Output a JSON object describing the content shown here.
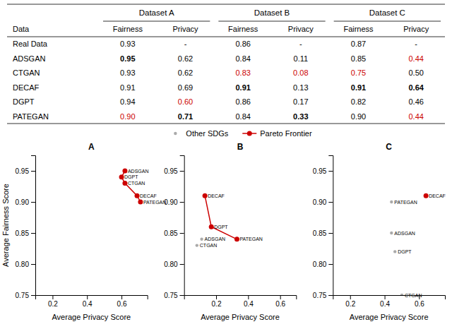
{
  "chart_data": [
    {
      "type": "table",
      "row_header": "Data",
      "categories": [
        "Real Data",
        "ADSGAN",
        "CTGAN",
        "DECAF",
        "DGPT",
        "PATEGAN"
      ],
      "groups": [
        {
          "name": "Dataset A",
          "series": [
            {
              "name": "Fairness",
              "values": [
                0.93,
                0.95,
                0.93,
                0.91,
                0.94,
                0.9
              ],
              "value_labels": [
                "0.93",
                "0.95",
                "0.93",
                "0.91",
                "0.94",
                "0.90"
              ],
              "colors": [
                "#000000",
                "#000000",
                "#000000",
                "#000000",
                "#000000",
                "#cc0000"
              ],
              "bold": [
                false,
                true,
                false,
                false,
                false,
                false
              ]
            },
            {
              "name": "Privacy",
              "values": [
                null,
                0.62,
                0.62,
                0.69,
                0.6,
                0.71
              ],
              "value_labels": [
                "-",
                "0.62",
                "0.62",
                "0.69",
                "0.60",
                "0.71"
              ],
              "colors": [
                "#000000",
                "#000000",
                "#000000",
                "#000000",
                "#cc0000",
                "#000000"
              ],
              "bold": [
                false,
                false,
                false,
                false,
                false,
                true
              ]
            }
          ]
        },
        {
          "name": "Dataset B",
          "series": [
            {
              "name": "Fairness",
              "values": [
                0.86,
                0.84,
                0.83,
                0.91,
                0.86,
                0.84
              ],
              "value_labels": [
                "0.86",
                "0.84",
                "0.83",
                "0.91",
                "0.86",
                "0.84"
              ],
              "colors": [
                "#000000",
                "#000000",
                "#cc0000",
                "#000000",
                "#000000",
                "#000000"
              ],
              "bold": [
                false,
                false,
                false,
                true,
                false,
                false
              ]
            },
            {
              "name": "Privacy",
              "values": [
                null,
                0.11,
                0.08,
                0.13,
                0.17,
                0.33
              ],
              "value_labels": [
                "-",
                "0.11",
                "0.08",
                "0.13",
                "0.17",
                "0.33"
              ],
              "colors": [
                "#000000",
                "#000000",
                "#cc0000",
                "#000000",
                "#000000",
                "#000000"
              ],
              "bold": [
                false,
                false,
                false,
                false,
                false,
                true
              ]
            }
          ]
        },
        {
          "name": "Dataset C",
          "series": [
            {
              "name": "Fairness",
              "values": [
                0.87,
                0.85,
                0.75,
                0.91,
                0.82,
                0.9
              ],
              "value_labels": [
                "0.87",
                "0.85",
                "0.75",
                "0.91",
                "0.82",
                "0.90"
              ],
              "colors": [
                "#000000",
                "#000000",
                "#cc0000",
                "#000000",
                "#000000",
                "#000000"
              ],
              "bold": [
                false,
                false,
                false,
                true,
                false,
                false
              ]
            },
            {
              "name": "Privacy",
              "values": [
                null,
                0.44,
                0.5,
                0.64,
                0.46,
                0.44
              ],
              "value_labels": [
                "-",
                "0.44",
                "0.50",
                "0.64",
                "0.46",
                "0.44"
              ],
              "colors": [
                "#000000",
                "#cc0000",
                "#000000",
                "#000000",
                "#000000",
                "#cc0000"
              ],
              "bold": [
                false,
                false,
                false,
                true,
                false,
                false
              ]
            }
          ]
        }
      ]
    },
    {
      "type": "scatter",
      "title": "A",
      "x_label": "Average Privacy Score",
      "y_label": "Average Fairness Score",
      "xlim": [
        0.1,
        0.75
      ],
      "ylim": [
        0.75,
        0.975
      ],
      "xticks": [
        0.2,
        0.4,
        0.6
      ],
      "yticks": [
        {
          "value": 0.75,
          "label": "0.75"
        },
        {
          "value": 0.8,
          "label": "0.80"
        },
        {
          "value": 0.85,
          "label": "0.85"
        },
        {
          "value": 0.9,
          "label": "0.90"
        },
        {
          "value": 0.95,
          "label": "0.95"
        }
      ],
      "grid": false,
      "legend": "top",
      "series": [
        {
          "name": "Other SDGs",
          "color": "#aaaaaa",
          "marker": "point",
          "line_style": "none",
          "x": [],
          "values": [],
          "labels": []
        },
        {
          "name": "Pareto Frontier",
          "color": "#cc0000",
          "marker": "circle",
          "line_style": "solid",
          "x": [
            0.62,
            0.6,
            0.62,
            0.69,
            0.71
          ],
          "values": [
            0.95,
            0.94,
            0.93,
            0.91,
            0.9
          ],
          "labels": [
            "ADSGAN",
            "DGPT",
            "CTGAN",
            "DECAF",
            "PATEGAN"
          ]
        }
      ]
    },
    {
      "type": "scatter",
      "title": "B",
      "x_label": "Average Privacy Score",
      "xlim": [
        0.0,
        0.7
      ],
      "ylim": [
        0.75,
        0.975
      ],
      "xticks": [
        0.2,
        0.4,
        0.6
      ],
      "yticks": [
        {
          "value": 0.75,
          "label": "0.75"
        },
        {
          "value": 0.8,
          "label": "0.80"
        },
        {
          "value": 0.85,
          "label": "0.85"
        },
        {
          "value": 0.9,
          "label": "0.90"
        },
        {
          "value": 0.95,
          "label": "0.95"
        }
      ],
      "grid": false,
      "series": [
        {
          "name": "Other SDGs",
          "color": "#aaaaaa",
          "marker": "point",
          "line_style": "none",
          "x": [
            0.11,
            0.08
          ],
          "values": [
            0.84,
            0.83
          ],
          "labels": [
            "ADSGAN",
            "CTGAN"
          ]
        },
        {
          "name": "Pareto Frontier",
          "color": "#cc0000",
          "marker": "circle",
          "line_style": "solid",
          "x": [
            0.13,
            0.17,
            0.33
          ],
          "values": [
            0.91,
            0.86,
            0.84
          ],
          "labels": [
            "DECAF",
            "DGPT",
            "PATEGAN"
          ]
        }
      ]
    },
    {
      "type": "scatter",
      "title": "C",
      "x_label": "Average Privacy Score",
      "xlim": [
        0.1,
        0.75
      ],
      "ylim": [
        0.75,
        0.975
      ],
      "xticks": [
        0.2,
        0.4,
        0.6
      ],
      "yticks": [
        {
          "value": 0.75,
          "label": "0.75"
        },
        {
          "value": 0.8,
          "label": "0.80"
        },
        {
          "value": 0.85,
          "label": "0.85"
        },
        {
          "value": 0.9,
          "label": "0.90"
        },
        {
          "value": 0.95,
          "label": "0.95"
        }
      ],
      "grid": false,
      "series": [
        {
          "name": "Other SDGs",
          "color": "#aaaaaa",
          "marker": "point",
          "line_style": "none",
          "x": [
            0.44,
            0.5,
            0.46,
            0.44
          ],
          "values": [
            0.85,
            0.75,
            0.82,
            0.9
          ],
          "labels": [
            "ADSGAN",
            "CTGAN",
            "DGPT",
            "PATEGAN"
          ]
        },
        {
          "name": "Pareto Frontier",
          "color": "#cc0000",
          "marker": "circle",
          "line_style": "solid",
          "x": [
            0.64
          ],
          "values": [
            0.91
          ],
          "labels": [
            "DECAF"
          ]
        }
      ]
    }
  ]
}
